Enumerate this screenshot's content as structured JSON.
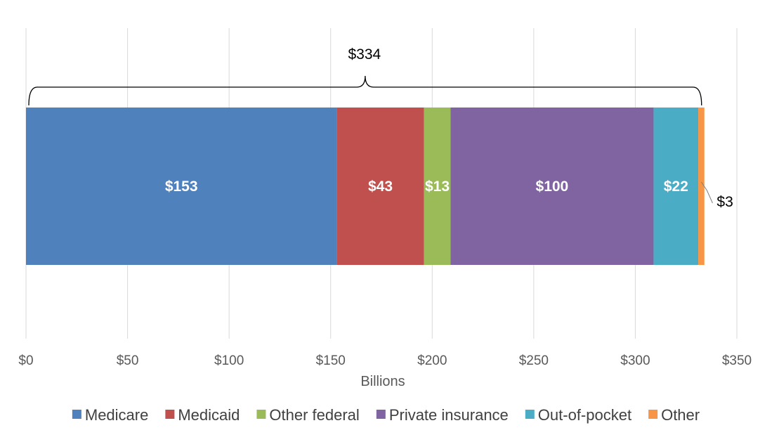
{
  "chart_data": {
    "type": "bar",
    "orientation": "horizontal",
    "stacked": true,
    "xlabel": "Billions",
    "xlim": [
      0,
      350
    ],
    "x_ticks": [
      0,
      50,
      100,
      150,
      200,
      250,
      300,
      350
    ],
    "x_tick_labels": [
      "$0",
      "$50",
      "$100",
      "$150",
      "$200",
      "$250",
      "$300",
      "$350"
    ],
    "grid": true,
    "legend_position": "bottom",
    "total": {
      "value": 334,
      "label": "$334"
    },
    "series": [
      {
        "name": "Medicare",
        "value": 153,
        "label": "$153",
        "color": "#4F81BD"
      },
      {
        "name": "Medicaid",
        "value": 43,
        "label": "$43",
        "color": "#C0504D"
      },
      {
        "name": "Other federal",
        "value": 13,
        "label": "$13",
        "color": "#9BBB59"
      },
      {
        "name": "Private insurance",
        "value": 100,
        "label": "$100",
        "color": "#8064A2"
      },
      {
        "name": "Out-of-pocket",
        "value": 22,
        "label": "$22",
        "color": "#4BACC6"
      },
      {
        "name": "Other",
        "value": 3,
        "label": "$3",
        "color": "#F79646"
      }
    ]
  }
}
